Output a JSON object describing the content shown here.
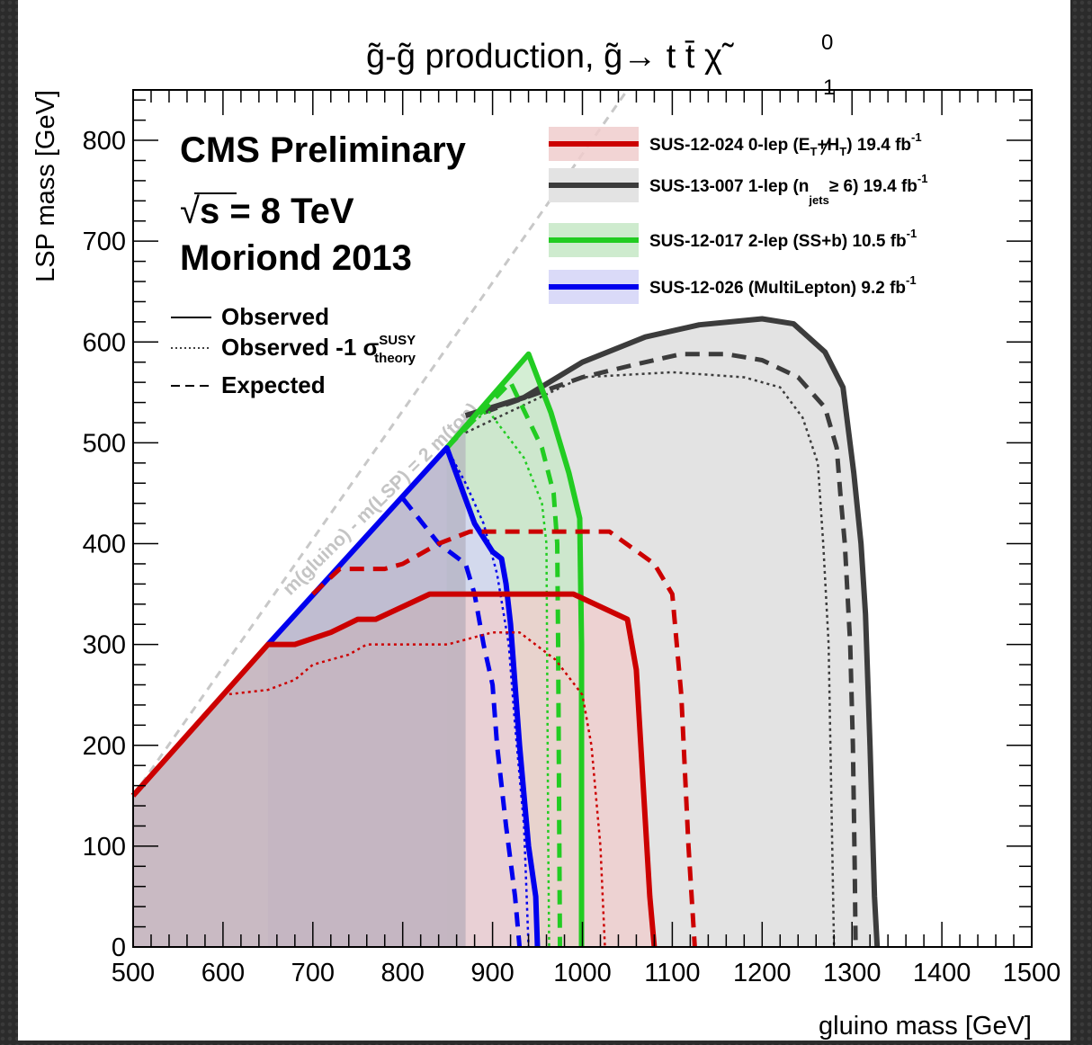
{
  "chart_data": {
    "type": "area",
    "title": "g̃-g̃ production, g̃→ t t̄ χ̃",
    "title_chi_sup": "0",
    "title_chi_sub": "1",
    "xlabel": "gluino mass [GeV]",
    "ylabel": "LSP mass [GeV]",
    "xlim": [
      500,
      1500
    ],
    "ylim": [
      0,
      850
    ],
    "x_ticks": [
      500,
      600,
      700,
      800,
      900,
      1000,
      1100,
      1200,
      1300,
      1400,
      1500
    ],
    "y_ticks": [
      0,
      100,
      200,
      300,
      400,
      500,
      600,
      700,
      800
    ],
    "grid": false,
    "legend_position": "top-right",
    "experiment_label": "CMS Preliminary",
    "energy_label": "s = 8 TeV",
    "energy_sqrt": "√",
    "conference_label": "Moriond 2013",
    "diagonal_label": "m(gluino) - m(LSP) = 2 m(top)",
    "diagonal": [
      [
        500,
        150
      ],
      [
        1050,
        850
      ]
    ],
    "line_styles": [
      {
        "name": "Observed",
        "style": "solid"
      },
      {
        "name": "Observed -1 σ",
        "sup": "SUSY",
        "sub": "theory",
        "style": "dotted"
      },
      {
        "name": "Expected",
        "style": "dashed"
      }
    ],
    "series": [
      {
        "name": "SUS-13-007 1-lep (n",
        "sub": "jets",
        "rest": "≥ 6) 19.4 fb",
        "sup": "-1",
        "color": "#3c3c3c",
        "fill": "#e3e3e3",
        "observed": [
          [
            870,
            527
          ],
          [
            935,
            545
          ],
          [
            1000,
            580
          ],
          [
            1070,
            605
          ],
          [
            1130,
            617
          ],
          [
            1200,
            623
          ],
          [
            1235,
            618
          ],
          [
            1270,
            590
          ],
          [
            1290,
            555
          ],
          [
            1302,
            470
          ],
          [
            1310,
            400
          ],
          [
            1315,
            330
          ],
          [
            1320,
            200
          ],
          [
            1325,
            50
          ],
          [
            1328,
            0
          ]
        ],
        "expected": [
          [
            890,
            530
          ],
          [
            1000,
            565
          ],
          [
            1060,
            578
          ],
          [
            1110,
            588
          ],
          [
            1160,
            588
          ],
          [
            1200,
            582
          ],
          [
            1240,
            565
          ],
          [
            1270,
            535
          ],
          [
            1283,
            495
          ],
          [
            1287,
            450
          ],
          [
            1292,
            400
          ],
          [
            1298,
            300
          ],
          [
            1301,
            200
          ],
          [
            1303,
            80
          ],
          [
            1304,
            0
          ]
        ],
        "minus1sigma": [
          [
            870,
            510
          ],
          [
            1000,
            565
          ],
          [
            1100,
            570
          ],
          [
            1180,
            565
          ],
          [
            1220,
            555
          ],
          [
            1245,
            525
          ],
          [
            1262,
            480
          ],
          [
            1268,
            400
          ],
          [
            1274,
            300
          ],
          [
            1277,
            150
          ],
          [
            1280,
            0
          ]
        ]
      },
      {
        "name": "SUS-12-017 2-lep (SS+b) 10.5 fb",
        "sup": "-1",
        "color": "#22cc22",
        "fill": "#c5e8c5",
        "observed": [
          [
            849,
            495
          ],
          [
            940,
            588
          ],
          [
            965,
            530
          ],
          [
            985,
            470
          ],
          [
            997,
            425
          ],
          [
            999,
            300
          ],
          [
            999,
            150
          ],
          [
            999,
            0
          ]
        ],
        "expected": [
          [
            849,
            495
          ],
          [
            920,
            560
          ],
          [
            955,
            495
          ],
          [
            968,
            450
          ],
          [
            972,
            400
          ],
          [
            973,
            300
          ],
          [
            974,
            150
          ],
          [
            975,
            0
          ]
        ],
        "minus1sigma": [
          [
            849,
            495
          ],
          [
            870,
            515
          ],
          [
            895,
            532
          ],
          [
            935,
            485
          ],
          [
            955,
            440
          ],
          [
            960,
            400
          ],
          [
            961,
            250
          ],
          [
            962,
            100
          ],
          [
            963,
            0
          ]
        ]
      },
      {
        "name": "SUS-12-026 (MultiLepton) 9.2 fb",
        "sup": "-1",
        "color": "#0000ee",
        "fill": "#d4d4f7",
        "observed": [
          [
            650,
            300
          ],
          [
            849,
            495
          ],
          [
            880,
            420
          ],
          [
            900,
            392
          ],
          [
            910,
            385
          ],
          [
            915,
            360
          ],
          [
            920,
            320
          ],
          [
            930,
            200
          ],
          [
            940,
            100
          ],
          [
            948,
            50
          ],
          [
            950,
            0
          ]
        ],
        "expected": [
          [
            800,
            445
          ],
          [
            840,
            400
          ],
          [
            870,
            380
          ],
          [
            880,
            350
          ],
          [
            890,
            300
          ],
          [
            900,
            260
          ],
          [
            905,
            200
          ],
          [
            915,
            120
          ],
          [
            925,
            50
          ],
          [
            930,
            0
          ]
        ],
        "minus1sigma": [
          [
            849,
            495
          ],
          [
            870,
            460
          ],
          [
            890,
            420
          ],
          [
            905,
            370
          ],
          [
            918,
            300
          ],
          [
            925,
            220
          ],
          [
            935,
            120
          ],
          [
            940,
            0
          ]
        ]
      },
      {
        "name": "SUS-12-024 0-lep (",
        "rest": "+H",
        "rest_sub": "T",
        "rest2": ") 19.4 fb",
        "sup": "-1",
        "met_text": "E",
        "met_sub": "T",
        "color": "#cc0000",
        "fill": "#f0cccc",
        "observed": [
          [
            500,
            150
          ],
          [
            650,
            300
          ],
          [
            680,
            300
          ],
          [
            720,
            312
          ],
          [
            750,
            325
          ],
          [
            770,
            325
          ],
          [
            830,
            350
          ],
          [
            950,
            350
          ],
          [
            990,
            350
          ],
          [
            1050,
            325
          ],
          [
            1060,
            275
          ],
          [
            1075,
            50
          ],
          [
            1080,
            0
          ]
        ],
        "expected": [
          [
            700,
            350
          ],
          [
            730,
            375
          ],
          [
            780,
            375
          ],
          [
            800,
            380
          ],
          [
            840,
            400
          ],
          [
            875,
            412
          ],
          [
            1030,
            412
          ],
          [
            1080,
            380
          ],
          [
            1100,
            350
          ],
          [
            1110,
            250
          ],
          [
            1118,
            100
          ],
          [
            1125,
            0
          ]
        ],
        "minus1sigma": [
          [
            600,
            250
          ],
          [
            650,
            255
          ],
          [
            680,
            265
          ],
          [
            700,
            280
          ],
          [
            740,
            290
          ],
          [
            760,
            300
          ],
          [
            850,
            300
          ],
          [
            900,
            312
          ],
          [
            930,
            312
          ],
          [
            970,
            285
          ],
          [
            1000,
            250
          ],
          [
            1010,
            200
          ],
          [
            1020,
            100
          ],
          [
            1025,
            0
          ]
        ]
      }
    ]
  }
}
